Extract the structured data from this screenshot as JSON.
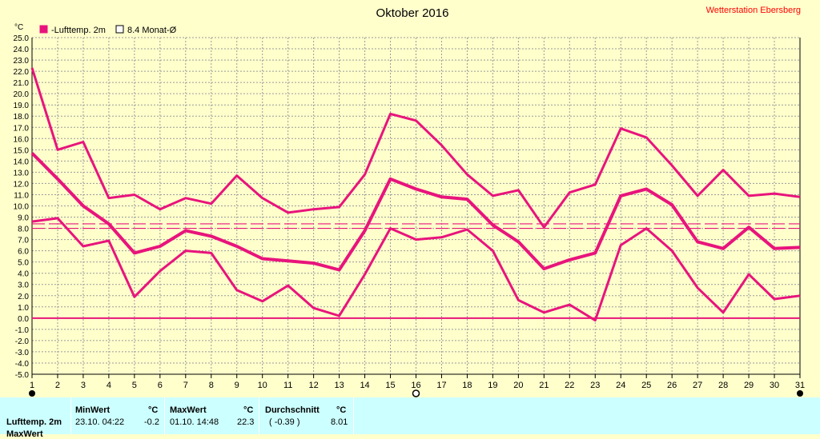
{
  "station": "Wetterstation Ebersberg",
  "chart_data": {
    "type": "line",
    "title": "Oktober 2016",
    "ylabel": "°C",
    "ylim": [
      -5.0,
      25.0
    ],
    "ytick_step": 1.0,
    "x": [
      1,
      2,
      3,
      4,
      5,
      6,
      7,
      8,
      9,
      10,
      11,
      12,
      13,
      14,
      15,
      16,
      17,
      18,
      19,
      20,
      21,
      22,
      23,
      24,
      25,
      26,
      27,
      28,
      29,
      30,
      31
    ],
    "grid": true,
    "legend_position": "top-left",
    "legend": [
      {
        "label": "-Lufttemp. 2m",
        "color": "#e8147c",
        "filled": true
      },
      {
        "label": "8.4 Monat-Ø",
        "color": "#e8147c",
        "filled": false
      }
    ],
    "series": [
      {
        "key": "max",
        "values": [
          22.3,
          15.0,
          15.7,
          10.7,
          11.0,
          9.7,
          10.7,
          10.2,
          12.7,
          10.7,
          9.4,
          9.7,
          9.9,
          12.8,
          18.2,
          17.6,
          15.4,
          12.8,
          10.9,
          11.4,
          8.1,
          11.2,
          11.9,
          16.9,
          16.1,
          13.6,
          10.9,
          13.2,
          10.9,
          11.1,
          10.8
        ],
        "color": "#e8147c"
      },
      {
        "key": "mean",
        "values": [
          14.7,
          12.4,
          10.0,
          8.4,
          5.8,
          6.4,
          7.8,
          7.3,
          6.4,
          5.3,
          5.1,
          4.9,
          4.3,
          7.8,
          12.4,
          11.5,
          10.8,
          10.6,
          8.3,
          6.8,
          4.4,
          5.2,
          5.8,
          10.9,
          11.5,
          10.1,
          6.8,
          6.2,
          8.1,
          6.2,
          6.3
        ],
        "color": "#e8147c"
      },
      {
        "key": "min",
        "values": [
          8.6,
          8.9,
          6.4,
          6.9,
          1.9,
          4.2,
          6.0,
          5.8,
          2.5,
          1.5,
          2.9,
          0.9,
          0.2,
          3.9,
          8.0,
          7.0,
          7.2,
          7.9,
          6.0,
          1.6,
          0.5,
          1.2,
          -0.2,
          6.5,
          8.0,
          6.0,
          2.7,
          0.5,
          3.9,
          1.7,
          2.0
        ],
        "color": "#e8147c"
      }
    ],
    "reference_lines": [
      {
        "y": 8.4,
        "style": "dashed"
      },
      {
        "y": 8.0,
        "style": "dashed"
      },
      {
        "y": 0.0,
        "style": "solid"
      }
    ]
  },
  "stats": {
    "row_label": "Lufttemp. 2m",
    "row_label2": "MaxWert",
    "min_header": "MinWert",
    "min_unit": "°C",
    "min_date": "23.10.  04:22",
    "min_value": "-0.2",
    "max_header": "MaxWert",
    "max_unit": "°C",
    "max_date": "01.10.  14:48",
    "max_value": "22.3",
    "avg_header": "Durchschnitt",
    "avg_unit": "°C",
    "avg_note": "( -0.39 )",
    "avg_value": "8.01"
  }
}
